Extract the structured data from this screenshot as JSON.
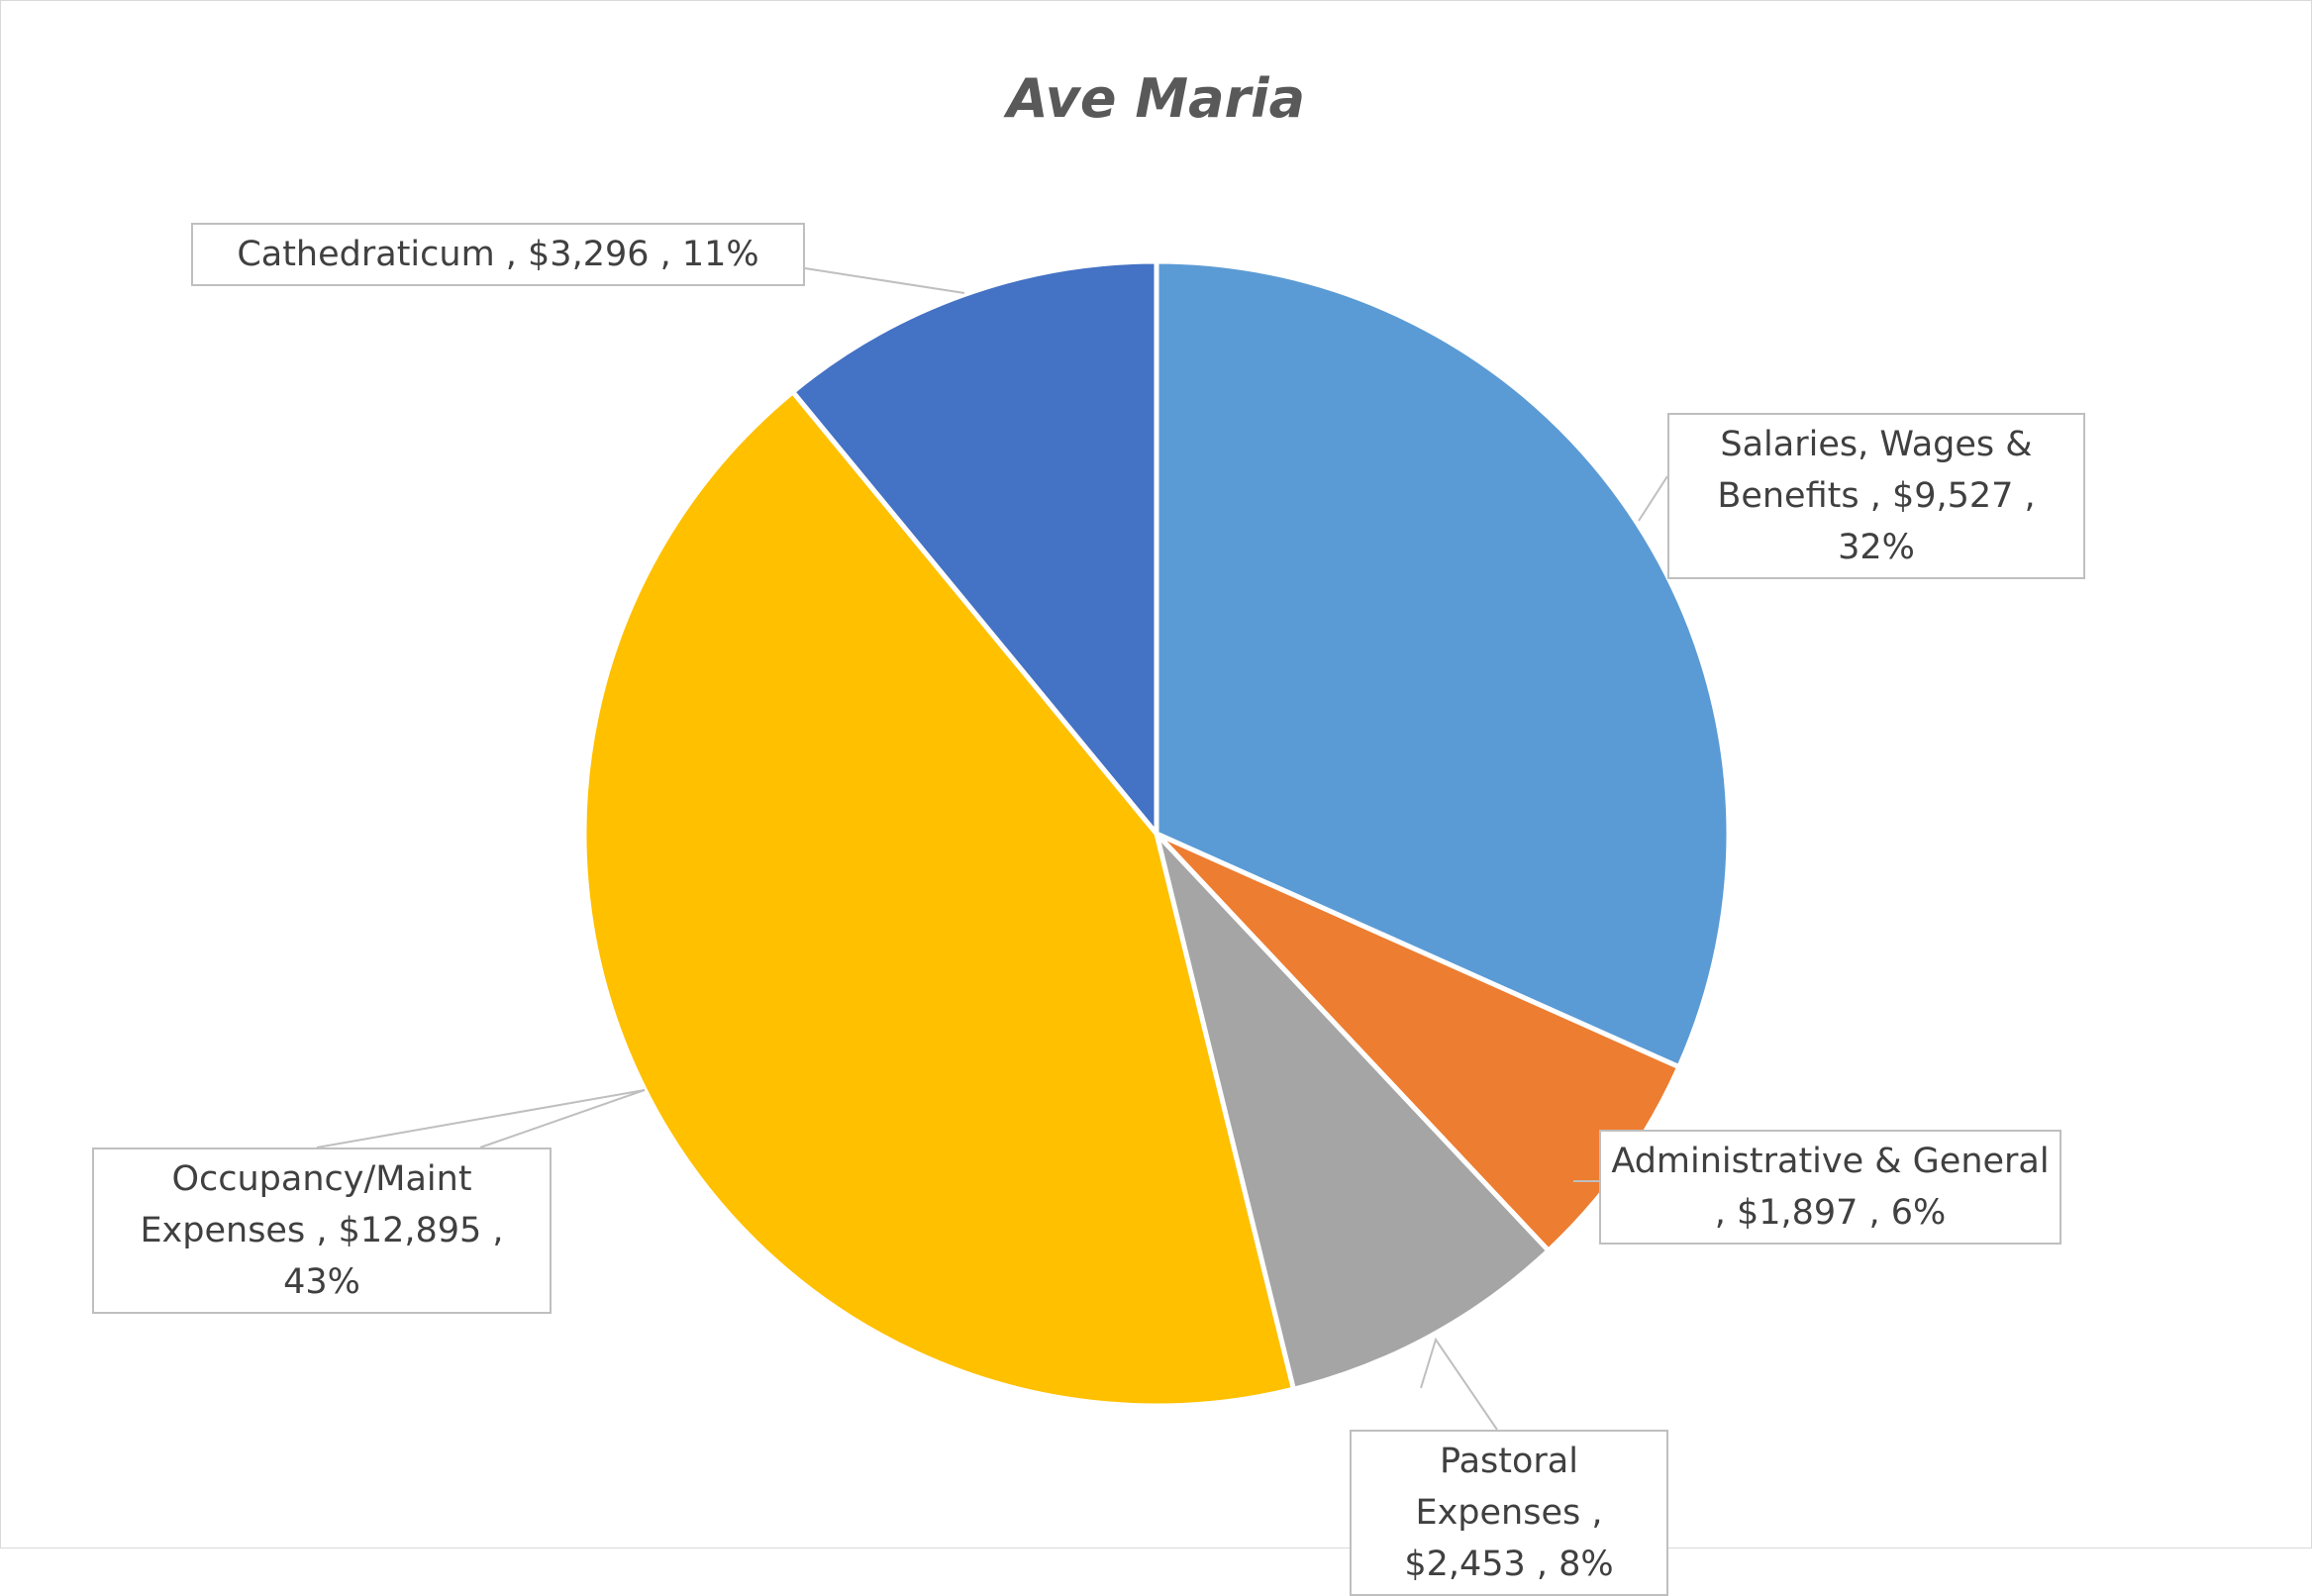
{
  "chart_data": {
    "type": "pie",
    "title": "Ave Maria",
    "slices": [
      {
        "name": "Salaries, Wages & Benefits",
        "value": 9527,
        "value_label": "$9,527",
        "percent_label": "32%",
        "color": "#5b9bd5"
      },
      {
        "name": "Administrative & General",
        "value": 1897,
        "value_label": "$1,897",
        "percent_label": "6%",
        "color": "#ed7d31"
      },
      {
        "name": "Pastoral Expenses",
        "value": 2453,
        "value_label": "$2,453",
        "percent_label": "8%",
        "color": "#a5a5a5"
      },
      {
        "name": "Occupancy/Maint Expenses",
        "value": 12895,
        "value_label": "$12,895",
        "percent_label": "43%",
        "color": "#ffc000"
      },
      {
        "name": "Cathedraticum",
        "value": 3296,
        "value_label": "$3,296",
        "percent_label": "11%",
        "color": "#4472c4"
      }
    ],
    "data_labels": [
      "Salaries, Wages & Benefits ,  $9,527 , 32%",
      "Administrative & General ,  $1,897 , 6%",
      "Pastoral Expenses ,  $2,453 , 8%",
      "Occupancy/Maint Expenses ,  $12,895 , 43%",
      "Cathedraticum ,  $3,296 , 11%"
    ]
  }
}
